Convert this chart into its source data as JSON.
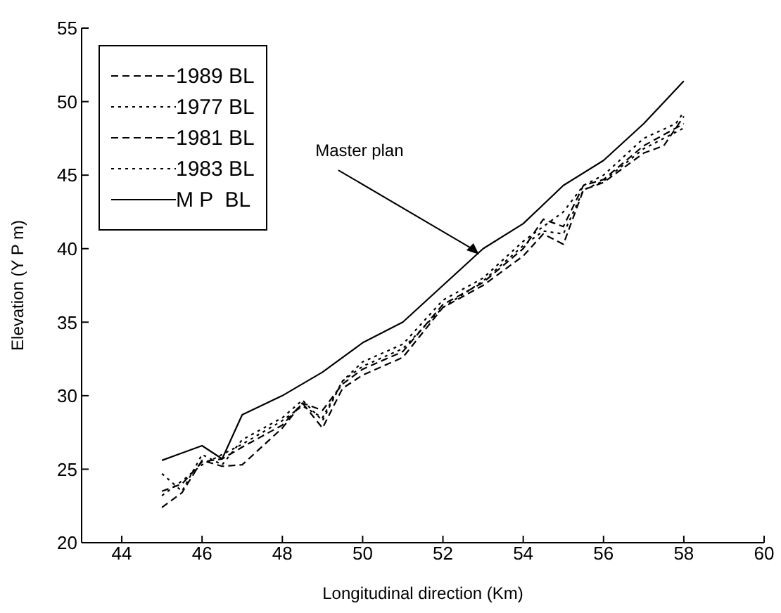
{
  "chart_data": {
    "type": "line",
    "xlabel": "Longitudinal direction (Km)",
    "ylabel": "Elevation (Y P m)",
    "xlim": [
      43,
      60
    ],
    "xticks": [
      44,
      46,
      48,
      50,
      52,
      54,
      56,
      58,
      60
    ],
    "ylim": [
      20,
      55
    ],
    "yticks": [
      20,
      25,
      30,
      35,
      40,
      45,
      50,
      55
    ],
    "grid": false,
    "legend": "top left",
    "marker": "none",
    "annotations": [
      {
        "text": "Master plan",
        "x": 52.9,
        "y": 39.6
      }
    ],
    "series": [
      {
        "name": "1989 BL",
        "color": "#000000",
        "line_style": "dashed",
        "x": [
          45,
          45.5,
          46,
          46.5,
          47,
          48,
          48.5,
          49,
          49.5,
          50,
          51,
          52,
          53,
          54,
          54.5,
          55,
          55.5,
          56,
          57,
          57.5,
          58
        ],
        "values": [
          22.4,
          23.4,
          25.6,
          25.2,
          25.3,
          27.8,
          29.5,
          27.8,
          30.5,
          31.4,
          32.6,
          36,
          37.5,
          39.5,
          41,
          40.3,
          44,
          44.5,
          46.5,
          47,
          49
        ]
      },
      {
        "name": "1977 BL",
        "color": "#000000",
        "line_style": "dotted",
        "x": [
          45,
          45.5,
          46,
          46.5,
          47,
          48,
          48.5,
          49,
          49.5,
          50,
          51,
          52,
          53,
          54,
          54.5,
          55,
          55.5,
          56,
          57,
          57.8,
          58
        ],
        "values": [
          24.7,
          23.5,
          26,
          25.3,
          27,
          28.5,
          29.7,
          28.3,
          31,
          32.3,
          33.5,
          36.5,
          38,
          40.5,
          41.5,
          42.5,
          44.3,
          45,
          47.5,
          48.5,
          49.3
        ]
      },
      {
        "name": "1981 BL",
        "color": "#000000",
        "line_style": "dashed",
        "x": [
          45,
          45.5,
          46,
          46.5,
          47,
          48,
          48.5,
          49,
          49.5,
          50,
          51,
          52,
          53,
          54,
          54.5,
          55,
          55.5,
          56,
          57,
          58
        ],
        "values": [
          23.5,
          24,
          25.5,
          25.7,
          26.5,
          28,
          29.5,
          29,
          30.8,
          31.8,
          33,
          36.2,
          37.7,
          40,
          42,
          41.5,
          44.3,
          44.7,
          47,
          48.5
        ]
      },
      {
        "name": "1983 BL",
        "color": "#000000",
        "line_style": "dotted",
        "x": [
          45,
          45.5,
          46,
          46.5,
          47,
          48,
          48.5,
          49,
          49.5,
          50,
          51,
          52,
          53,
          54,
          54.5,
          55,
          55.5,
          56,
          57,
          58
        ],
        "values": [
          23.2,
          24.2,
          25.3,
          26,
          26.7,
          28.3,
          29.3,
          28.5,
          31,
          32,
          33.2,
          36,
          37.8,
          40.2,
          41.2,
          41,
          44,
          44.6,
          46.8,
          48.2
        ]
      },
      {
        "name": "M P  BL",
        "color": "#000000",
        "line_style": "solid",
        "x": [
          45,
          46,
          46.5,
          47,
          48,
          49,
          50,
          51,
          52,
          53,
          54,
          55,
          56,
          57,
          58
        ],
        "values": [
          25.6,
          26.6,
          25.7,
          28.7,
          30,
          31.6,
          33.6,
          35,
          37.5,
          40,
          41.7,
          44.3,
          46,
          48.5,
          51.4
        ]
      }
    ]
  }
}
